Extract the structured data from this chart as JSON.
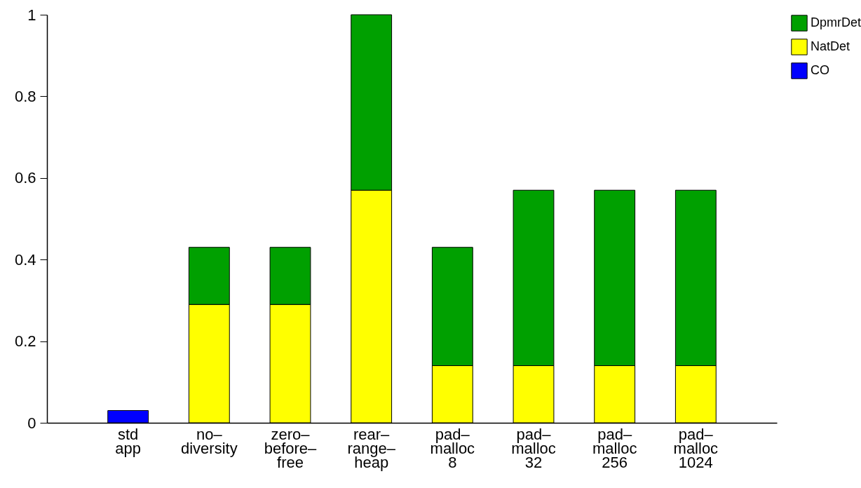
{
  "chart_data": {
    "type": "bar",
    "stacked": true,
    "categories": [
      "std\napp",
      "no–\ndiversity",
      "zero–\nbefore–\nfree",
      "rear–\nrange–\nheap",
      "pad–\nmalloc\n8",
      "pad–\nmalloc\n32",
      "pad–\nmalloc\n256",
      "pad–\nmalloc\n1024"
    ],
    "series": [
      {
        "name": "CO",
        "color": "#0000ff",
        "values": [
          0.03,
          null,
          null,
          null,
          null,
          null,
          null,
          null
        ]
      },
      {
        "name": "NatDet",
        "color": "#ffff00",
        "values": [
          null,
          0.29,
          0.29,
          0.57,
          0.14,
          0.14,
          0.14,
          0.14
        ]
      },
      {
        "name": "DpmrDet",
        "color": "#00a000",
        "values": [
          null,
          0.14,
          0.14,
          0.43,
          0.29,
          0.43,
          0.43,
          0.43
        ]
      }
    ],
    "ylim": [
      0,
      1
    ],
    "yticks": [
      0,
      0.2,
      0.4,
      0.6,
      0.8,
      1
    ],
    "grid": false,
    "legend": "top right"
  }
}
